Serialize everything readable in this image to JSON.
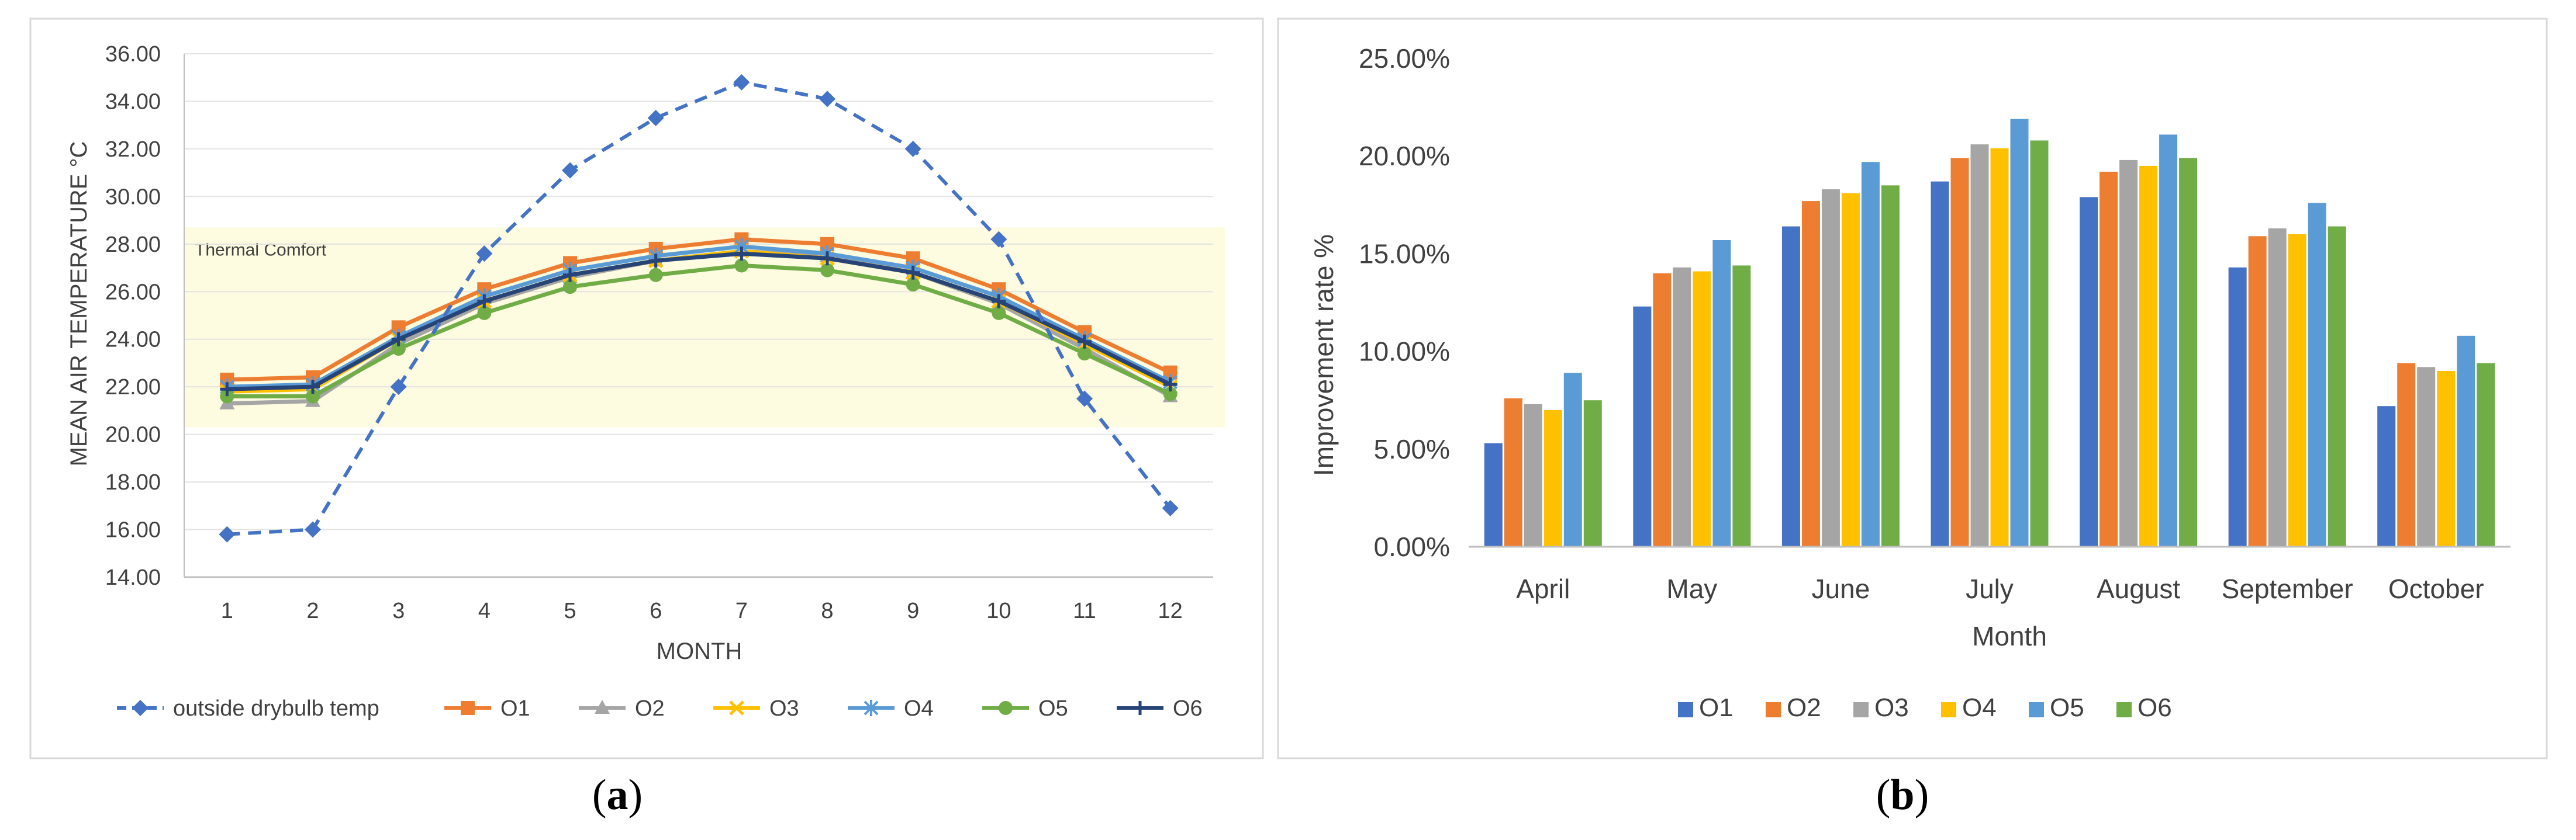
{
  "chart_data": [
    {
      "type": "line",
      "panel_label_open": "(",
      "panel_label": "a",
      "panel_label_close": ")",
      "xlabel": "MONTH",
      "ylabel": "MEAN AIR TEMPERATURE °C",
      "x": [
        1,
        2,
        3,
        4,
        5,
        6,
        7,
        8,
        9,
        10,
        11,
        12
      ],
      "ylim": [
        14,
        36
      ],
      "yticks": [
        "14.00",
        "16.00",
        "18.00",
        "20.00",
        "22.00",
        "24.00",
        "26.00",
        "28.00",
        "30.00",
        "32.00",
        "34.00",
        "36.00"
      ],
      "band": {
        "label": "Thermal Comfort",
        "range": [
          20.3,
          28.7
        ],
        "color": "#fdfbe0"
      },
      "grid": true,
      "legend_position": "bottom",
      "series": [
        {
          "name": "outside drybulb temp",
          "color": "#4472c4",
          "marker": "diamond",
          "dashed": true,
          "values": [
            15.8,
            16.0,
            22.0,
            27.6,
            31.1,
            33.3,
            34.8,
            34.1,
            32.0,
            28.2,
            21.5,
            16.9
          ]
        },
        {
          "name": "O1",
          "color": "#ed7d31",
          "marker": "square",
          "values": [
            22.3,
            22.4,
            24.5,
            26.1,
            27.2,
            27.8,
            28.2,
            28.0,
            27.4,
            26.1,
            24.3,
            22.6
          ]
        },
        {
          "name": "O2",
          "color": "#a5a5a5",
          "marker": "triangle",
          "values": [
            21.3,
            21.4,
            23.8,
            25.5,
            26.6,
            27.3,
            27.7,
            27.5,
            26.8,
            25.5,
            23.6,
            21.6
          ]
        },
        {
          "name": "O3",
          "color": "#ffc000",
          "marker": "x",
          "values": [
            21.8,
            21.9,
            24.0,
            25.6,
            26.7,
            27.3,
            27.7,
            27.4,
            26.8,
            25.6,
            23.8,
            22.0
          ]
        },
        {
          "name": "O4",
          "color": "#5b9bd5",
          "marker": "star",
          "values": [
            22.0,
            22.1,
            24.1,
            25.8,
            26.9,
            27.5,
            27.9,
            27.6,
            27.0,
            25.8,
            24.0,
            22.2
          ]
        },
        {
          "name": "O5",
          "color": "#70ad47",
          "marker": "circle",
          "values": [
            21.6,
            21.6,
            23.6,
            25.1,
            26.2,
            26.7,
            27.1,
            26.9,
            26.3,
            25.1,
            23.4,
            21.7
          ]
        },
        {
          "name": "O6",
          "color": "#264478",
          "marker": "plus",
          "values": [
            21.9,
            22.0,
            24.0,
            25.6,
            26.7,
            27.3,
            27.6,
            27.4,
            26.8,
            25.6,
            23.9,
            22.1
          ]
        }
      ]
    },
    {
      "type": "bar",
      "panel_label_open": "(",
      "panel_label": "b",
      "panel_label_close": ")",
      "xlabel": "Month",
      "ylabel": "Improvement rate %",
      "categories": [
        "April",
        "May",
        "June",
        "July",
        "August",
        "September",
        "October"
      ],
      "ylim": [
        0,
        25
      ],
      "yticks": [
        "0.00%",
        "5.00%",
        "10.00%",
        "15.00%",
        "20.00%",
        "25.00%"
      ],
      "grid": false,
      "legend_position": "bottom",
      "series": [
        {
          "name": "O1",
          "color": "#4472c4",
          "values": [
            5.3,
            12.3,
            16.4,
            18.7,
            17.9,
            14.3,
            7.2
          ]
        },
        {
          "name": "O2",
          "color": "#ed7d31",
          "values": [
            7.6,
            14.0,
            17.7,
            19.9,
            19.2,
            15.9,
            9.4
          ]
        },
        {
          "name": "O3",
          "color": "#a5a5a5",
          "values": [
            7.3,
            14.3,
            18.3,
            20.6,
            19.8,
            16.3,
            9.2
          ]
        },
        {
          "name": "O4",
          "color": "#ffc000",
          "values": [
            7.0,
            14.1,
            18.1,
            20.4,
            19.5,
            16.0,
            9.0
          ]
        },
        {
          "name": "O5",
          "color": "#5b9bd5",
          "values": [
            8.9,
            15.7,
            19.7,
            21.9,
            21.1,
            17.6,
            10.8
          ]
        },
        {
          "name": "O6",
          "color": "#70ad47",
          "values": [
            7.5,
            14.4,
            18.5,
            20.8,
            19.9,
            16.4,
            9.4
          ]
        }
      ]
    }
  ]
}
